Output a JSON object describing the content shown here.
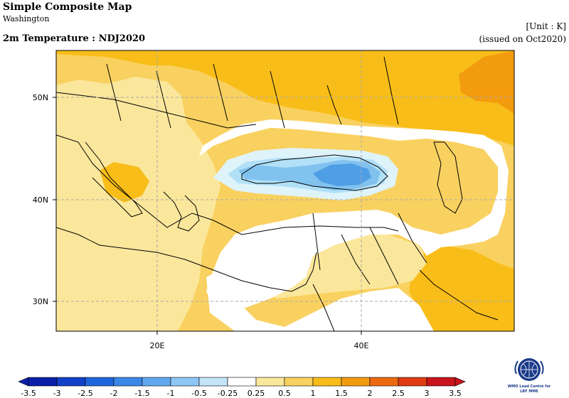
{
  "header": {
    "title": "Simple Composite Map",
    "subtitle": "Washington",
    "variable": "2m Temperature : NDJ2020",
    "unit": "[Unit : K]",
    "issued": "(issued on Oct2020)"
  },
  "map": {
    "lat_labels": [
      "50N",
      "40N",
      "30N"
    ],
    "lon_labels": [
      "20E",
      "40E"
    ],
    "grid": true,
    "colors": {
      "anom_025_05": "#fbe79b",
      "anom_05_1": "#f9d160",
      "anom_1_15": "#f8bd19",
      "anom_15_2": "#f39b0f",
      "neutral": "#ffffff",
      "anom_m025_m05": "#dff3fb",
      "anom_m05_m1": "#b1e0f7",
      "anom_m1_m15": "#82c2ef",
      "anom_m15_m2": "#4f9fe6",
      "coast": "#000000",
      "gridline": "#aaaaaa"
    }
  },
  "colorbar": {
    "labels": [
      "-3.5",
      "-3",
      "-2.5",
      "-2",
      "-1.5",
      "-1",
      "-0.5",
      "-0.25",
      "0.25",
      "0.5",
      "1",
      "1.5",
      "2",
      "2.5",
      "3",
      "3.5"
    ],
    "colors": [
      "#0a1fa8",
      "#1240c8",
      "#1f66de",
      "#3b87e8",
      "#62a8ef",
      "#8ec6f5",
      "#c3e4f9",
      "#ffffff",
      "#fbe79b",
      "#f9d160",
      "#f8bd19",
      "#f39b0f",
      "#ee6a10",
      "#e03c12",
      "#c8141a"
    ]
  },
  "logo": {
    "text_line1": "WMO Lead Centre for",
    "text_line2": "LRF MME"
  }
}
